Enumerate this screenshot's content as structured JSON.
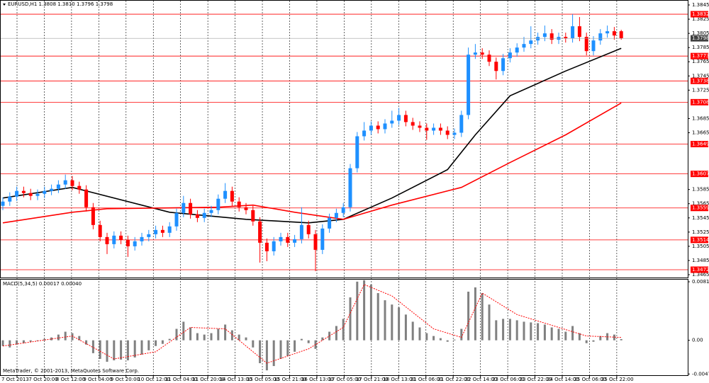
{
  "chart_data": [
    {
      "type": "candlestick",
      "title": "EURUSD,H1  1.3808 1.3810 1.3796 1.3798",
      "up_color": "#1e90ff",
      "down_color": "#ff0000",
      "open": [
        1.3562,
        1.3568,
        1.3575,
        1.3583,
        1.358,
        1.3576,
        1.3579,
        1.3583,
        1.3586,
        1.3592,
        1.3598,
        1.359,
        1.3585,
        1.356,
        1.3535,
        1.3518,
        1.3508,
        1.352,
        1.3514,
        1.3505,
        1.3512,
        1.3518,
        1.3522,
        1.3528,
        1.3524,
        1.3533,
        1.3552,
        1.3566,
        1.355,
        1.3545,
        1.3552,
        1.3556,
        1.3572,
        1.3583,
        1.3568,
        1.356,
        1.3556,
        1.354,
        1.351,
        1.3498,
        1.3512,
        1.3518,
        1.351,
        1.3515,
        1.3535,
        1.3522,
        1.35,
        1.353,
        1.3545,
        1.3552,
        1.356,
        1.3615,
        1.366,
        1.3668,
        1.3675,
        1.367,
        1.3678,
        1.3682,
        1.369,
        1.368,
        1.3675,
        1.3672,
        1.3668,
        1.3672,
        1.3668,
        1.3662,
        1.3665,
        1.369,
        1.3775,
        1.3778,
        1.3775,
        1.3765,
        1.3752,
        1.377,
        1.3778,
        1.3785,
        1.379,
        1.3795,
        1.38,
        1.3805,
        1.3796,
        1.38,
        1.3798,
        1.3815,
        1.38,
        1.378,
        1.3795,
        1.3805,
        1.3808,
        1.3808
      ],
      "high": [
        1.3574,
        1.3581,
        1.3589,
        1.3589,
        1.3586,
        1.3585,
        1.3589,
        1.3592,
        1.3598,
        1.3606,
        1.3604,
        1.3596,
        1.3591,
        1.3566,
        1.3541,
        1.3524,
        1.3526,
        1.3526,
        1.352,
        1.3518,
        1.3524,
        1.3528,
        1.3534,
        1.3534,
        1.3539,
        1.3558,
        1.3576,
        1.3572,
        1.3556,
        1.3558,
        1.3562,
        1.3578,
        1.3594,
        1.3589,
        1.3574,
        1.3566,
        1.3562,
        1.3546,
        1.3516,
        1.3518,
        1.3524,
        1.3524,
        1.3521,
        1.356,
        1.3541,
        1.3528,
        1.3536,
        1.3551,
        1.3558,
        1.3566,
        1.3621,
        1.3666,
        1.368,
        1.3681,
        1.3681,
        1.3684,
        1.3696,
        1.37,
        1.3696,
        1.3686,
        1.3681,
        1.3678,
        1.3678,
        1.3678,
        1.3674,
        1.3671,
        1.3696,
        1.3785,
        1.379,
        1.3784,
        1.3781,
        1.3771,
        1.3776,
        1.3784,
        1.3791,
        1.38,
        1.3815,
        1.3806,
        1.3816,
        1.3811,
        1.3806,
        1.3806,
        1.3832,
        1.3828,
        1.3806,
        1.3801,
        1.3811,
        1.3816,
        1.3814,
        1.381
      ],
      "low": [
        1.3556,
        1.3562,
        1.3569,
        1.3574,
        1.357,
        1.357,
        1.3573,
        1.3577,
        1.358,
        1.3586,
        1.3584,
        1.3579,
        1.3554,
        1.3529,
        1.3512,
        1.3494,
        1.3502,
        1.3508,
        1.349,
        1.3499,
        1.3506,
        1.3512,
        1.3516,
        1.3518,
        1.3518,
        1.3527,
        1.3546,
        1.3544,
        1.3539,
        1.3539,
        1.3546,
        1.355,
        1.3566,
        1.3562,
        1.3554,
        1.355,
        1.3534,
        1.3482,
        1.3484,
        1.3492,
        1.3506,
        1.3504,
        1.3504,
        1.3509,
        1.3516,
        1.347,
        1.3494,
        1.3524,
        1.3539,
        1.3546,
        1.3554,
        1.3609,
        1.3654,
        1.3662,
        1.3664,
        1.3664,
        1.3672,
        1.3676,
        1.3674,
        1.3669,
        1.3666,
        1.3655,
        1.3662,
        1.3662,
        1.3656,
        1.3656,
        1.3659,
        1.3684,
        1.3769,
        1.3769,
        1.3759,
        1.374,
        1.3746,
        1.3764,
        1.3772,
        1.3779,
        1.3784,
        1.3789,
        1.3794,
        1.379,
        1.379,
        1.3792,
        1.3792,
        1.3794,
        1.3774,
        1.3774,
        1.3789,
        1.3799,
        1.3796,
        1.3796
      ],
      "close": [
        1.3568,
        1.3575,
        1.3583,
        1.358,
        1.3576,
        1.3579,
        1.3583,
        1.3586,
        1.3592,
        1.3598,
        1.359,
        1.3585,
        1.356,
        1.3535,
        1.3518,
        1.3508,
        1.352,
        1.3514,
        1.3505,
        1.3512,
        1.3518,
        1.3522,
        1.3528,
        1.3524,
        1.3533,
        1.3552,
        1.3566,
        1.355,
        1.3545,
        1.3552,
        1.3556,
        1.3572,
        1.3583,
        1.3568,
        1.356,
        1.3556,
        1.354,
        1.351,
        1.3498,
        1.3512,
        1.3518,
        1.351,
        1.3515,
        1.3535,
        1.3522,
        1.35,
        1.353,
        1.3545,
        1.3552,
        1.356,
        1.3615,
        1.366,
        1.3668,
        1.3675,
        1.367,
        1.3678,
        1.3682,
        1.369,
        1.368,
        1.3675,
        1.3672,
        1.3668,
        1.3672,
        1.3668,
        1.3662,
        1.3665,
        1.369,
        1.3775,
        1.3778,
        1.3775,
        1.3765,
        1.3752,
        1.377,
        1.3778,
        1.3785,
        1.379,
        1.3795,
        1.38,
        1.3805,
        1.3796,
        1.38,
        1.3798,
        1.3815,
        1.38,
        1.378,
        1.3795,
        1.3805,
        1.3808,
        1.3802,
        1.3798
      ],
      "lines": [
        {
          "color": "#000000",
          "x": [
            0,
            10,
            24,
            35,
            44,
            49,
            56,
            64,
            68,
            73,
            81,
            89
          ],
          "values": [
            1.3573,
            1.3588,
            1.3553,
            1.3543,
            1.3538,
            1.3543,
            1.3573,
            1.3613,
            1.3662,
            1.3717,
            1.3752,
            1.3784
          ]
        },
        {
          "color": "#ff0000",
          "x": [
            0,
            10,
            15,
            31,
            36,
            42,
            49,
            56,
            66,
            73,
            81,
            89
          ],
          "values": [
            1.3538,
            1.3553,
            1.3558,
            1.356,
            1.3563,
            1.3553,
            1.3543,
            1.3563,
            1.3588,
            1.3623,
            1.3662,
            1.3707
          ]
        }
      ],
      "levels": [
        1.3832,
        1.3773,
        1.3738,
        1.3708,
        1.3649,
        1.3607,
        1.3559,
        1.3514,
        1.3472
      ],
      "level_color": "#ff0000",
      "ylim": [
        1.3461,
        1.3852
      ],
      "yticks": [
        1.3845,
        1.3825,
        1.3805,
        1.3785,
        1.3765,
        1.3745,
        1.3725,
        1.3685,
        1.3665,
        1.3585,
        1.3565,
        1.3545,
        1.3525,
        1.3505,
        1.3485,
        1.3465
      ],
      "time_labels": [
        "7 Oct 2013",
        "7 Oct 20:00",
        "8 Oct 12:00",
        "9 Oct 04:00",
        "9 Oct 20:00",
        "10 Oct 12:00",
        "11 Oct 04:00",
        "11 Oct 20:00",
        "14 Oct 13:00",
        "15 Oct 05:00",
        "15 Oct 21:00",
        "16 Oct 13:00",
        "17 Oct 05:00",
        "17 Oct 21:00",
        "18 Oct 13:00",
        "21 Oct 06:00",
        "21 Oct 22:00",
        "22 Oct 14:00",
        "23 Oct 06:00",
        "23 Oct 22:00",
        "24 Oct 14:00",
        "25 Oct 06:00",
        "25 Oct 22:00"
      ]
    },
    {
      "type": "bar",
      "title": "MACD(5,34,5) 0.00017 0.00040",
      "color": "#808080",
      "values": [
        -0.0008,
        -0.001,
        -0.0006,
        -0.0004,
        -0.0002,
        -0.0001,
        0.0002,
        0.0004,
        0.0008,
        0.0012,
        0.001,
        0.0006,
        -0.0006,
        -0.0018,
        -0.0026,
        -0.003,
        -0.0028,
        -0.0027,
        -0.0028,
        -0.0024,
        -0.002,
        -0.0014,
        -0.0008,
        -0.0005,
        0.0002,
        0.0016,
        0.0026,
        0.0018,
        0.001,
        0.0008,
        0.001,
        0.0016,
        0.0022,
        0.0014,
        0.0008,
        0.0004,
        -0.001,
        -0.0032,
        -0.0042,
        -0.0036,
        -0.0026,
        -0.0022,
        -0.0016,
        0.0002,
        -0.0004,
        -0.0012,
        0.0004,
        0.0012,
        0.002,
        0.003,
        0.006,
        0.0082,
        0.0084,
        0.0078,
        0.0066,
        0.0056,
        0.005,
        0.0046,
        0.0036,
        0.0026,
        0.0018,
        0.001,
        0.0006,
        0.0003,
        -0.0002,
        0.0001,
        0.0016,
        0.0068,
        0.0074,
        0.0066,
        0.005,
        0.0028,
        0.003,
        0.003,
        0.0028,
        0.0026,
        0.0025,
        0.0024,
        0.0022,
        0.0018,
        0.0016,
        0.0012,
        0.002,
        0.001,
        -0.0004,
        -0.0002,
        0.0006,
        0.001,
        0.0008,
        0.00017
      ],
      "signal": {
        "color": "#ff0000",
        "x": [
          0,
          10,
          16,
          22,
          27,
          32,
          38,
          44,
          49,
          52,
          56,
          62,
          66,
          69,
          74,
          80,
          84,
          89
        ],
        "values": [
          -0.0008,
          0.0006,
          -0.0026,
          -0.0016,
          0.0018,
          0.0016,
          -0.0032,
          -0.0012,
          0.0018,
          0.0078,
          0.0062,
          0.0016,
          0.0004,
          0.0066,
          0.0036,
          0.0018,
          0.0006,
          0.0004
        ]
      },
      "ylim": [
        -0.00498,
        0.00858
      ],
      "yticks": [
        0.00818,
        {
          "value": 0,
          "label": "0.00"
        },
        -0.00471
      ],
      "footer": "MetaTrader, © 2001-2013, MetaQuotes Software Corp."
    }
  ]
}
